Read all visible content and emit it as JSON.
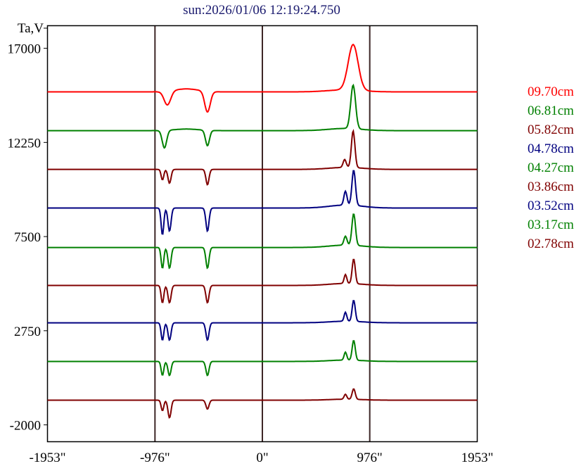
{
  "chart_data": {
    "type": "line",
    "title": "sun:2026/01/06 12:19:24.750",
    "ylabel": "Ta,V",
    "xlabel": "",
    "xlim": [
      -1953,
      1953
    ],
    "ylim": [
      -2850,
      18140
    ],
    "x_ticks": [
      {
        "value": -1953,
        "label": "-1953\""
      },
      {
        "value": -976,
        "label": "-976\""
      },
      {
        "value": 0,
        "label": "0\""
      },
      {
        "value": 976,
        "label": "976\""
      },
      {
        "value": 1953,
        "label": "1953\""
      }
    ],
    "y_ticks": [
      {
        "value": 17000,
        "label": "17000"
      },
      {
        "value": 12250,
        "label": "12250"
      },
      {
        "value": 7500,
        "label": "7500"
      },
      {
        "value": 2750,
        "label": "2750"
      },
      {
        "value": -2000,
        "label": "-2000"
      }
    ],
    "vertical_lines": [
      -976,
      0,
      976
    ],
    "legend_position": "right",
    "series": [
      {
        "name": "09.70cm",
        "color": "#ff0000",
        "baseline": 14800,
        "features": [
          [
            -863,
            30,
            -700
          ],
          [
            -499,
            25,
            -1050
          ],
          [
            -690,
            110,
            150
          ],
          [
            825,
            45,
            2300
          ],
          [
            750,
            160,
            100
          ]
        ]
      },
      {
        "name": "06.81cm",
        "color": "#008000",
        "baseline": 12845,
        "features": [
          [
            -890,
            20,
            -890
          ],
          [
            -499,
            18,
            -780
          ],
          [
            -690,
            110,
            80
          ],
          [
            825,
            22,
            2200
          ],
          [
            750,
            150,
            110
          ]
        ]
      },
      {
        "name": "05.82cm",
        "color": "#800000",
        "baseline": 10890,
        "features": [
          [
            -908,
            12,
            -530
          ],
          [
            -844,
            14,
            -700
          ],
          [
            -499,
            14,
            -780
          ],
          [
            825,
            16,
            1850
          ],
          [
            748,
            14,
            400
          ],
          [
            760,
            150,
            100
          ]
        ]
      },
      {
        "name": "04.78cm",
        "color": "#000080",
        "baseline": 8940,
        "features": [
          [
            -908,
            12,
            -1350
          ],
          [
            -844,
            14,
            -1170
          ],
          [
            -499,
            14,
            -1170
          ],
          [
            830,
            16,
            1780
          ],
          [
            755,
            14,
            700
          ],
          [
            760,
            150,
            150
          ]
        ]
      },
      {
        "name": "04.27cm",
        "color": "#008000",
        "baseline": 6950,
        "features": [
          [
            -908,
            12,
            -1050
          ],
          [
            -844,
            14,
            -1050
          ],
          [
            -499,
            14,
            -1050
          ],
          [
            830,
            16,
            1600
          ],
          [
            755,
            14,
            450
          ],
          [
            760,
            150,
            120
          ]
        ]
      },
      {
        "name": "03.86cm",
        "color": "#800000",
        "baseline": 5035,
        "features": [
          [
            -908,
            12,
            -880
          ],
          [
            -844,
            14,
            -880
          ],
          [
            -499,
            14,
            -880
          ],
          [
            830,
            14,
            1250
          ],
          [
            755,
            12,
            450
          ],
          [
            760,
            150,
            100
          ]
        ]
      },
      {
        "name": "03.52cm",
        "color": "#000080",
        "baseline": 3150,
        "features": [
          [
            -908,
            12,
            -880
          ],
          [
            -844,
            14,
            -880
          ],
          [
            -499,
            14,
            -880
          ],
          [
            830,
            14,
            1070
          ],
          [
            755,
            12,
            450
          ],
          [
            760,
            150,
            80
          ]
        ]
      },
      {
        "name": "03.17cm",
        "color": "#008000",
        "baseline": 1200,
        "features": [
          [
            -908,
            12,
            -700
          ],
          [
            -844,
            14,
            -710
          ],
          [
            -499,
            14,
            -710
          ],
          [
            830,
            14,
            1000
          ],
          [
            755,
            12,
            400
          ],
          [
            760,
            150,
            70
          ]
        ]
      },
      {
        "name": "02.78cm",
        "color": "#800000",
        "baseline": -755,
        "features": [
          [
            -908,
            12,
            -530
          ],
          [
            -844,
            14,
            -890
          ],
          [
            -499,
            14,
            -450
          ],
          [
            830,
            14,
            530
          ],
          [
            755,
            12,
            250
          ],
          [
            760,
            150,
            50
          ]
        ]
      }
    ]
  }
}
